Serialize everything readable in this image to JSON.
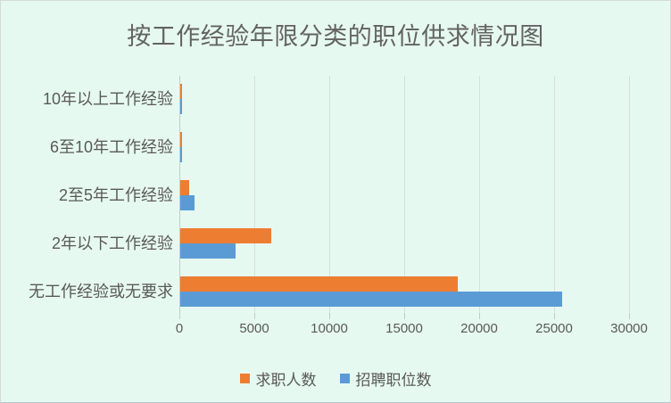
{
  "chart_data": {
    "type": "bar",
    "orientation": "horizontal",
    "title": "按工作经验年限分类的职位供求情况图",
    "categories": [
      "10年以上工作经验",
      "6至10年工作经验",
      "2至5年工作经验",
      "2年以下工作经验",
      "无工作经验或无要求"
    ],
    "series": [
      {
        "name": "求职人数",
        "color": "#ED7D31",
        "values": [
          110,
          140,
          590,
          6050,
          18500
        ]
      },
      {
        "name": "招聘职位数",
        "color": "#5B9BD5",
        "values": [
          110,
          110,
          950,
          3670,
          25450
        ]
      }
    ],
    "xlim": [
      0,
      30000
    ],
    "x_ticks": [
      0,
      5000,
      10000,
      15000,
      20000,
      25000,
      30000
    ],
    "x_tick_labels": [
      "0",
      "5000",
      "10000",
      "15000",
      "20000",
      "25000",
      "30000"
    ],
    "grid": "vertical-only",
    "legend_position": "bottom-center"
  },
  "colors": {
    "background": "#E6F9F0",
    "gridline": "#D5E0D8",
    "axis_line": "#C2CCC5",
    "text": "#595959",
    "title_text": "#636363",
    "series_orange": "#ED7D31",
    "series_blue": "#5B9BD5"
  }
}
